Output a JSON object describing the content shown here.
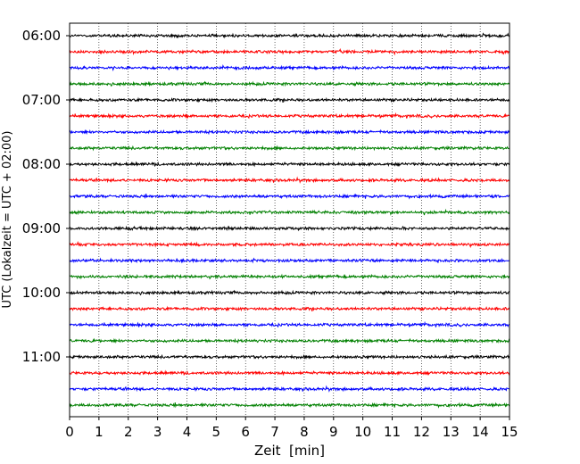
{
  "chart_data": {
    "type": "line",
    "title": "",
    "xlabel": "Zeit  [min]",
    "ylabel": "UTC (Lokalzeit = UTC + 02:00)",
    "xlim": [
      0,
      15
    ],
    "x_ticks": [
      "0",
      "1",
      "2",
      "3",
      "4",
      "5",
      "6",
      "7",
      "8",
      "9",
      "10",
      "11",
      "12",
      "13",
      "14",
      "15"
    ],
    "y_ticks": [
      "06:00",
      "07:00",
      "08:00",
      "09:00",
      "10:00",
      "11:00"
    ],
    "grid": "vertical dotted",
    "trace_interval_min": 15,
    "trace_colors": [
      "#000000",
      "#ff0000",
      "#0000ff",
      "#008000"
    ],
    "traces": [
      {
        "start": "06:00",
        "color": "#000000"
      },
      {
        "start": "06:15",
        "color": "#ff0000"
      },
      {
        "start": "06:30",
        "color": "#0000ff"
      },
      {
        "start": "06:45",
        "color": "#008000"
      },
      {
        "start": "07:00",
        "color": "#000000"
      },
      {
        "start": "07:15",
        "color": "#ff0000"
      },
      {
        "start": "07:30",
        "color": "#0000ff"
      },
      {
        "start": "07:45",
        "color": "#008000"
      },
      {
        "start": "08:00",
        "color": "#000000"
      },
      {
        "start": "08:15",
        "color": "#ff0000"
      },
      {
        "start": "08:30",
        "color": "#0000ff"
      },
      {
        "start": "08:45",
        "color": "#008000"
      },
      {
        "start": "09:00",
        "color": "#000000"
      },
      {
        "start": "09:15",
        "color": "#ff0000"
      },
      {
        "start": "09:30",
        "color": "#0000ff"
      },
      {
        "start": "09:45",
        "color": "#008000"
      },
      {
        "start": "10:00",
        "color": "#000000"
      },
      {
        "start": "10:15",
        "color": "#ff0000"
      },
      {
        "start": "10:30",
        "color": "#0000ff"
      },
      {
        "start": "10:45",
        "color": "#008000"
      },
      {
        "start": "11:00",
        "color": "#000000"
      },
      {
        "start": "11:15",
        "color": "#ff0000"
      },
      {
        "start": "11:30",
        "color": "#0000ff"
      },
      {
        "start": "11:45",
        "color": "#008000"
      }
    ]
  }
}
